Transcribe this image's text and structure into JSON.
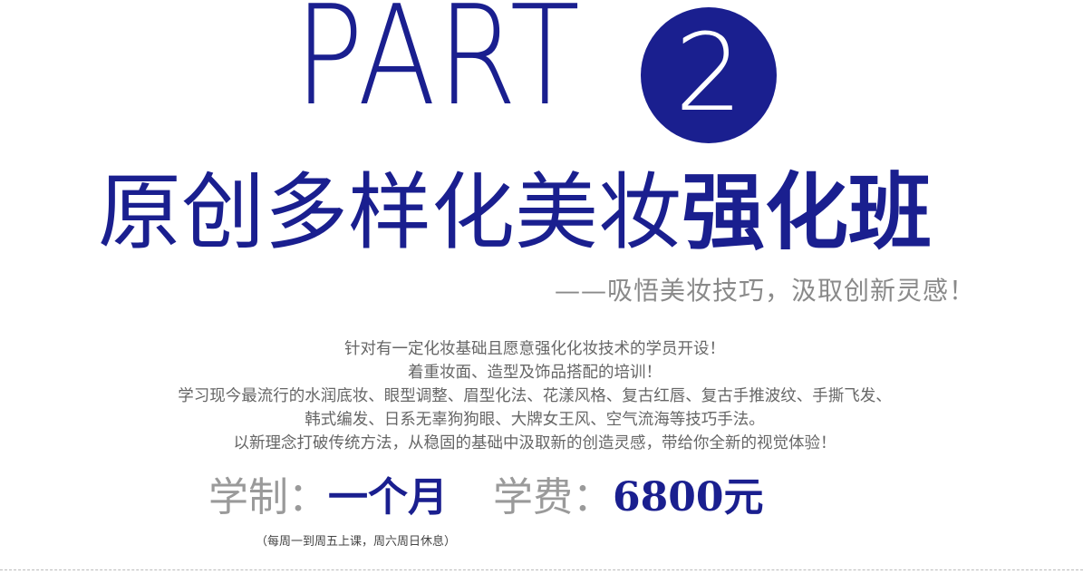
{
  "header": {
    "part_label": "PART",
    "part_number": "2",
    "accent_color": "#1a1f8f"
  },
  "title": {
    "light": "原创多样化美妆",
    "bold": "强化班"
  },
  "subtitle": "——吸悟美妆技巧，汲取创新灵感！",
  "description": {
    "lines": [
      "针对有一定化妆基础且愿意强化化妆技术的学员开设！",
      "着重妆面、造型及饰品搭配的培训！",
      "学习现今最流行的水润底妆、眼型调整、眉型化法、花漾风格、复古红唇、复古手推波纹、手撕飞发、",
      "韩式编发、日系无辜狗狗眼、大牌女王风、空气流海等技巧手法。",
      "以新理念打破传统方法，从稳固的基础中汲取新的创造灵感，带给你全新的视觉体验！"
    ]
  },
  "info": {
    "duration_label": "学制：",
    "duration_value": "一个月",
    "fee_label": "学费：",
    "fee_value": "6800元",
    "note": "（每周一到周五上课，周六周日休息）"
  }
}
